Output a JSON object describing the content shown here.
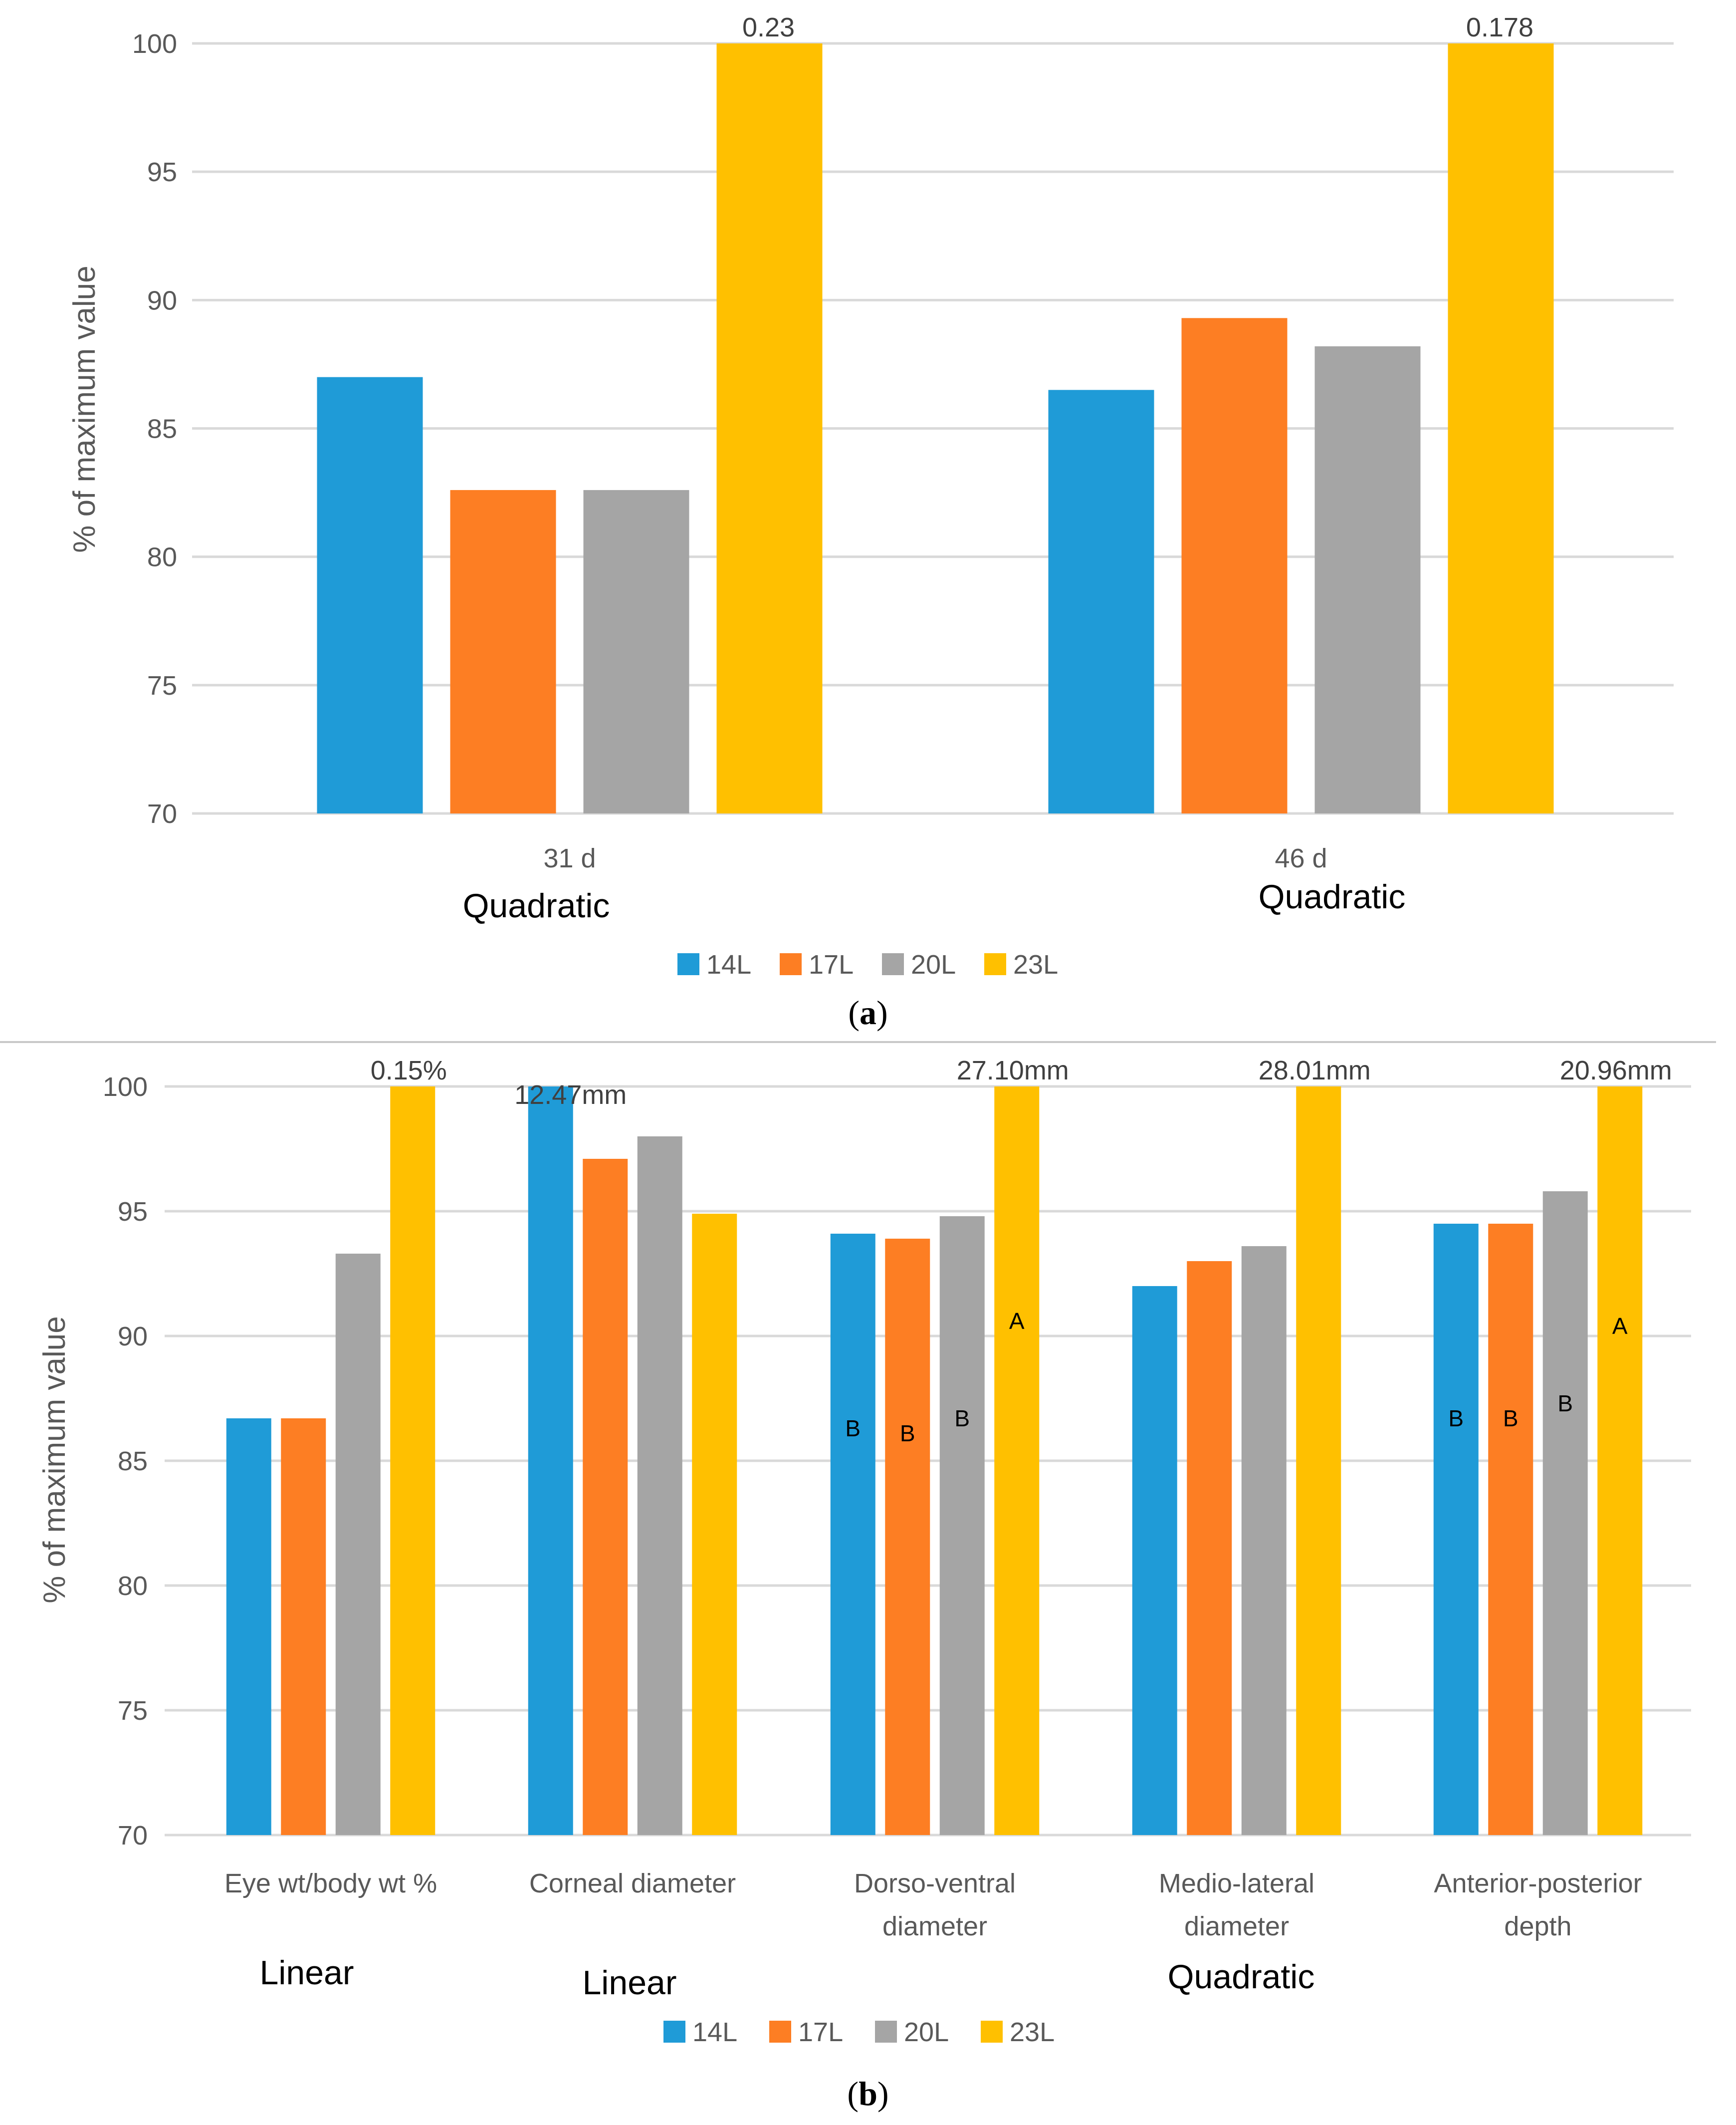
{
  "colors": {
    "14L": "#1f9bd7",
    "17L": "#fd7e23",
    "20L": "#a5a5a5",
    "23L": "#ffc000"
  },
  "chart_data": [
    {
      "type": "bar",
      "panel": "a",
      "panel_label": "a",
      "ylabel": "% of maximum value",
      "ylim": [
        70,
        100
      ],
      "yticks": [
        70,
        75,
        80,
        85,
        90,
        95,
        100
      ],
      "grid": true,
      "categories": [
        "31 d",
        "46 d"
      ],
      "series": [
        {
          "name": "14L",
          "values": [
            87.0,
            86.5
          ]
        },
        {
          "name": "17L",
          "values": [
            82.6,
            89.3
          ]
        },
        {
          "name": "20L",
          "values": [
            82.6,
            88.2
          ]
        },
        {
          "name": "23L",
          "values": [
            100,
            100
          ]
        }
      ],
      "bar_top_labels": [
        {
          "category": 0,
          "series": 3,
          "text": "0.23"
        },
        {
          "category": 1,
          "series": 3,
          "text": "0.178"
        }
      ],
      "trend_labels": [
        "Quadratic",
        "Quadratic"
      ],
      "legend": [
        "14L",
        "17L",
        "20L",
        "23L"
      ],
      "legend_position": "bottom"
    },
    {
      "type": "bar",
      "panel": "b",
      "panel_label": "b",
      "ylabel": "% of maximum value",
      "ylim": [
        70,
        100
      ],
      "yticks": [
        70,
        75,
        80,
        85,
        90,
        95,
        100
      ],
      "grid": true,
      "categories": [
        [
          "Eye wt/body wt %"
        ],
        [
          "Corneal diameter"
        ],
        [
          "Dorso-ventral",
          "diameter"
        ],
        [
          "Medio-lateral",
          "diameter"
        ],
        [
          "Anterior-posterior",
          "depth"
        ]
      ],
      "series": [
        {
          "name": "14L",
          "values": [
            86.7,
            100,
            94.1,
            92.0,
            94.5
          ]
        },
        {
          "name": "17L",
          "values": [
            86.7,
            97.1,
            93.9,
            93.0,
            94.5
          ]
        },
        {
          "name": "20L",
          "values": [
            93.3,
            98.0,
            94.8,
            93.6,
            95.8
          ]
        },
        {
          "name": "23L",
          "values": [
            100,
            94.9,
            100,
            100,
            100
          ]
        }
      ],
      "bar_top_labels": [
        {
          "category": 0,
          "series": 3,
          "text": "0.15%"
        },
        {
          "category": 1,
          "series": 0,
          "text": "12.47mm"
        },
        {
          "category": 2,
          "series": 3,
          "text": "27.10mm"
        },
        {
          "category": 3,
          "series": 3,
          "text": "28.01mm"
        },
        {
          "category": 4,
          "series": 3,
          "text": "20.96mm"
        }
      ],
      "significance_letters": [
        {
          "category": 2,
          "series": 0,
          "text": "B",
          "at": 86.3
        },
        {
          "category": 2,
          "series": 1,
          "text": "B",
          "at": 86.1
        },
        {
          "category": 2,
          "series": 2,
          "text": "B",
          "at": 86.7
        },
        {
          "category": 2,
          "series": 3,
          "text": "A",
          "at": 90.6
        },
        {
          "category": 4,
          "series": 0,
          "text": "B",
          "at": 86.7
        },
        {
          "category": 4,
          "series": 1,
          "text": "B",
          "at": 86.7
        },
        {
          "category": 4,
          "series": 2,
          "text": "B",
          "at": 87.3
        },
        {
          "category": 4,
          "series": 3,
          "text": "A",
          "at": 90.4
        }
      ],
      "trend_labels": [
        "Linear",
        "Linear",
        "Quadratic"
      ],
      "legend": [
        "14L",
        "17L",
        "20L",
        "23L"
      ],
      "legend_position": "bottom"
    }
  ]
}
